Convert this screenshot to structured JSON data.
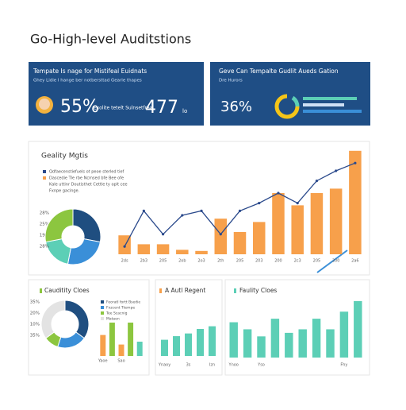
{
  "header": {
    "title": "Go-High-level Auditstions"
  },
  "cards": [
    {
      "title": "Tempate Is nage for Mistifeal Euidnats",
      "subtitle": "Ghey Lidie I hange ber notbersttad Gearle thapes",
      "metric": "55%",
      "note": "Exolite tetelt Sulnsetfreal",
      "metric2": "477",
      "unit": "lo"
    },
    {
      "title": "Geve Can Tempalte Gudlit Aueds Gation",
      "subtitle": "Dre Hurors",
      "metric": "36%"
    }
  ],
  "chart_data": [
    {
      "type": "bar_line",
      "title": "Geality Mgtis",
      "categories": [
        "2ds",
        "2b3",
        "205",
        "2ob",
        "2o3",
        "2th",
        "205",
        "203",
        "200",
        "2c3",
        "205",
        "200",
        "2a6"
      ],
      "series": [
        {
          "name": "Qdfaecenstiefuels ot peoe sterled tief",
          "color": "#2b4a8c",
          "kind": "line",
          "values": [
            7,
            39,
            18,
            35,
            39,
            18,
            39,
            46,
            55,
            46,
            66,
            75,
            82
          ]
        },
        {
          "name": "Dascedie Tle rbe Ncmsed bfe Bee ofe",
          "color": "#f7a04b",
          "kind": "bar",
          "values": [
            17,
            9,
            9,
            4,
            3,
            32,
            20,
            29,
            55,
            44,
            55,
            59,
            93
          ]
        }
      ],
      "notes": [
        "Kale uttinr Doutisthet Cettle ty oplt cee",
        "Fxnpe gacinge."
      ],
      "ylim": [
        0,
        100
      ]
    },
    {
      "type": "pie",
      "categories": [
        null,
        null,
        null,
        null
      ],
      "values": [
        28,
        25,
        19,
        28
      ],
      "value_labels": [
        "28%",
        "25%",
        "19%",
        "28%"
      ],
      "colors": [
        "#1f4e80",
        "#3a8fd8",
        "#5ccfb6",
        "#8cc63f"
      ]
    },
    {
      "type": "pie",
      "title": "Cauditity Cloes",
      "categories": [
        "Feoratl fortt Bsedie",
        "Fxzcent Ttempe",
        "Tee Scacnig",
        "Mataen"
      ],
      "values": [
        35,
        20,
        10,
        35
      ],
      "value_labels": [
        "35%",
        "20%",
        "10%",
        "35%"
      ],
      "colors": [
        "#1f4e80",
        "#3a8fd8",
        "#8cc63f",
        "#e3e3e3"
      ]
    },
    {
      "type": "bar",
      "categories": [
        "Yaoe",
        null,
        "Sao",
        null,
        null
      ],
      "values": [
        22,
        35,
        12,
        35,
        15
      ],
      "colors": [
        "#f7a04b",
        "#8cc63f",
        "#f7a04b",
        "#8cc63f",
        "#5ccfb6"
      ],
      "ylim": [
        0,
        40
      ]
    },
    {
      "type": "bar",
      "title": "A Autl Regent",
      "categories": [
        "Ynaoy",
        null,
        "3s",
        null,
        "Izn"
      ],
      "values": [
        18,
        22,
        25,
        30,
        33
      ],
      "color": "#5ccfb6",
      "ylim": [
        0,
        60
      ]
    },
    {
      "type": "bar",
      "title": "Faulity Cloes",
      "categories": [
        "Ynoo",
        null,
        "Yso",
        null,
        null,
        null,
        null,
        null,
        "Fhy",
        null
      ],
      "values": [
        50,
        40,
        30,
        55,
        35,
        40,
        55,
        40,
        65,
        80
      ],
      "color": "#5ccfb6",
      "ylim": [
        0,
        90
      ]
    }
  ]
}
